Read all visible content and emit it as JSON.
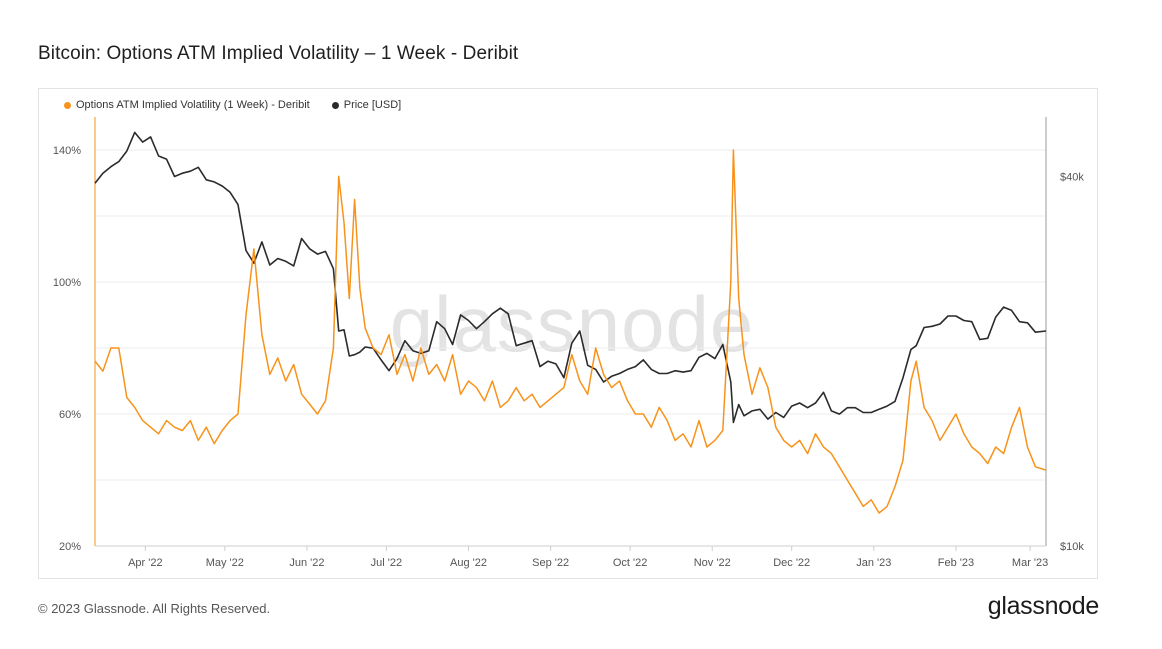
{
  "header": {
    "title": "Bitcoin: Options ATM Implied Volatility – 1 Week - Deribit"
  },
  "footer": {
    "copyright": "© 2023 Glassnode. All Rights Reserved.",
    "brand": "glassnode"
  },
  "watermark": "glassnode",
  "colors": {
    "volatility": "#F7931A",
    "price": "#2B2B2B",
    "grid": "#ececec",
    "axis": "#cfcfcf"
  },
  "chart_data": {
    "type": "line",
    "title": "Bitcoin: Options ATM Implied Volatility – 1 Week - Deribit",
    "legend_position": "top-left",
    "grid": true,
    "x_range": [
      "2022-03-13",
      "2023-03-07"
    ],
    "x_ticks": [
      {
        "label": "Apr '22",
        "date": "2022-04-01"
      },
      {
        "label": "May '22",
        "date": "2022-05-01"
      },
      {
        "label": "Jun '22",
        "date": "2022-06-01"
      },
      {
        "label": "Jul '22",
        "date": "2022-07-01"
      },
      {
        "label": "Aug '22",
        "date": "2022-08-01"
      },
      {
        "label": "Sep '22",
        "date": "2022-09-01"
      },
      {
        "label": "Oct '22",
        "date": "2022-10-01"
      },
      {
        "label": "Nov '22",
        "date": "2022-11-01"
      },
      {
        "label": "Dec '22",
        "date": "2022-12-01"
      },
      {
        "label": "Jan '23",
        "date": "2023-01-01"
      },
      {
        "label": "Feb '23",
        "date": "2023-02-01"
      },
      {
        "label": "Mar '23",
        "date": "2023-03-01"
      }
    ],
    "y_left": {
      "range": [
        20,
        150
      ],
      "ticks": [
        {
          "label": "20%",
          "value": 20
        },
        {
          "label": "60%",
          "value": 60
        },
        {
          "label": "100%",
          "value": 100
        },
        {
          "label": "140%",
          "value": 140
        }
      ]
    },
    "y_right": {
      "scale": "log",
      "range": [
        10000,
        50000
      ],
      "ticks": [
        {
          "label": "$10k",
          "value": 10000
        },
        {
          "label": "$40k",
          "value": 40000
        }
      ]
    },
    "series": [
      {
        "name": "Options ATM Implied Volatility (1 Week) - Deribit",
        "axis": "left",
        "unit": "%",
        "points": [
          [
            "2022-03-13",
            76
          ],
          [
            "2022-03-16",
            73
          ],
          [
            "2022-03-19",
            80
          ],
          [
            "2022-03-22",
            80
          ],
          [
            "2022-03-25",
            65
          ],
          [
            "2022-03-28",
            62
          ],
          [
            "2022-03-31",
            58
          ],
          [
            "2022-04-03",
            56
          ],
          [
            "2022-04-06",
            54
          ],
          [
            "2022-04-09",
            58
          ],
          [
            "2022-04-12",
            56
          ],
          [
            "2022-04-15",
            55
          ],
          [
            "2022-04-18",
            58
          ],
          [
            "2022-04-21",
            52
          ],
          [
            "2022-04-24",
            56
          ],
          [
            "2022-04-27",
            51
          ],
          [
            "2022-04-30",
            55
          ],
          [
            "2022-05-03",
            58
          ],
          [
            "2022-05-06",
            60
          ],
          [
            "2022-05-09",
            90
          ],
          [
            "2022-05-12",
            110
          ],
          [
            "2022-05-15",
            84
          ],
          [
            "2022-05-18",
            72
          ],
          [
            "2022-05-21",
            77
          ],
          [
            "2022-05-24",
            70
          ],
          [
            "2022-05-27",
            75
          ],
          [
            "2022-05-30",
            66
          ],
          [
            "2022-06-02",
            63
          ],
          [
            "2022-06-05",
            60
          ],
          [
            "2022-06-08",
            64
          ],
          [
            "2022-06-11",
            80
          ],
          [
            "2022-06-13",
            132
          ],
          [
            "2022-06-15",
            118
          ],
          [
            "2022-06-17",
            95
          ],
          [
            "2022-06-19",
            125
          ],
          [
            "2022-06-21",
            98
          ],
          [
            "2022-06-23",
            86
          ],
          [
            "2022-06-26",
            80
          ],
          [
            "2022-06-29",
            78
          ],
          [
            "2022-07-02",
            84
          ],
          [
            "2022-07-05",
            72
          ],
          [
            "2022-07-08",
            78
          ],
          [
            "2022-07-11",
            70
          ],
          [
            "2022-07-14",
            80
          ],
          [
            "2022-07-17",
            72
          ],
          [
            "2022-07-20",
            75
          ],
          [
            "2022-07-23",
            70
          ],
          [
            "2022-07-26",
            78
          ],
          [
            "2022-07-29",
            66
          ],
          [
            "2022-08-01",
            70
          ],
          [
            "2022-08-04",
            68
          ],
          [
            "2022-08-07",
            64
          ],
          [
            "2022-08-10",
            70
          ],
          [
            "2022-08-13",
            62
          ],
          [
            "2022-08-16",
            64
          ],
          [
            "2022-08-19",
            68
          ],
          [
            "2022-08-22",
            64
          ],
          [
            "2022-08-25",
            66
          ],
          [
            "2022-08-28",
            62
          ],
          [
            "2022-08-31",
            64
          ],
          [
            "2022-09-03",
            66
          ],
          [
            "2022-09-06",
            68
          ],
          [
            "2022-09-09",
            78
          ],
          [
            "2022-09-12",
            70
          ],
          [
            "2022-09-15",
            66
          ],
          [
            "2022-09-18",
            80
          ],
          [
            "2022-09-21",
            72
          ],
          [
            "2022-09-24",
            68
          ],
          [
            "2022-09-27",
            70
          ],
          [
            "2022-09-30",
            64
          ],
          [
            "2022-10-03",
            60
          ],
          [
            "2022-10-06",
            60
          ],
          [
            "2022-10-09",
            56
          ],
          [
            "2022-10-12",
            62
          ],
          [
            "2022-10-15",
            58
          ],
          [
            "2022-10-18",
            52
          ],
          [
            "2022-10-21",
            54
          ],
          [
            "2022-10-24",
            50
          ],
          [
            "2022-10-27",
            58
          ],
          [
            "2022-10-30",
            50
          ],
          [
            "2022-11-02",
            52
          ],
          [
            "2022-11-05",
            55
          ],
          [
            "2022-11-08",
            100
          ],
          [
            "2022-11-09",
            140
          ],
          [
            "2022-11-11",
            95
          ],
          [
            "2022-11-13",
            78
          ],
          [
            "2022-11-16",
            66
          ],
          [
            "2022-11-19",
            74
          ],
          [
            "2022-11-22",
            68
          ],
          [
            "2022-11-25",
            56
          ],
          [
            "2022-11-28",
            52
          ],
          [
            "2022-12-01",
            50
          ],
          [
            "2022-12-04",
            52
          ],
          [
            "2022-12-07",
            48
          ],
          [
            "2022-12-10",
            54
          ],
          [
            "2022-12-13",
            50
          ],
          [
            "2022-12-16",
            48
          ],
          [
            "2022-12-19",
            44
          ],
          [
            "2022-12-22",
            40
          ],
          [
            "2022-12-25",
            36
          ],
          [
            "2022-12-28",
            32
          ],
          [
            "2022-12-31",
            34
          ],
          [
            "2023-01-03",
            30
          ],
          [
            "2023-01-06",
            32
          ],
          [
            "2023-01-09",
            38
          ],
          [
            "2023-01-12",
            46
          ],
          [
            "2023-01-15",
            70
          ],
          [
            "2023-01-17",
            76
          ],
          [
            "2023-01-20",
            62
          ],
          [
            "2023-01-23",
            58
          ],
          [
            "2023-01-26",
            52
          ],
          [
            "2023-01-29",
            56
          ],
          [
            "2023-02-01",
            60
          ],
          [
            "2023-02-04",
            54
          ],
          [
            "2023-02-07",
            50
          ],
          [
            "2023-02-10",
            48
          ],
          [
            "2023-02-13",
            45
          ],
          [
            "2023-02-16",
            50
          ],
          [
            "2023-02-19",
            48
          ],
          [
            "2023-02-22",
            56
          ],
          [
            "2023-02-25",
            62
          ],
          [
            "2023-02-28",
            50
          ],
          [
            "2023-03-03",
            44
          ],
          [
            "2023-03-07",
            43
          ]
        ]
      },
      {
        "name": "Price [USD]",
        "axis": "right",
        "unit": "USD",
        "points": [
          [
            "2022-03-13",
            39000
          ],
          [
            "2022-03-16",
            40500
          ],
          [
            "2022-03-19",
            41500
          ],
          [
            "2022-03-22",
            42300
          ],
          [
            "2022-03-25",
            44000
          ],
          [
            "2022-03-28",
            47200
          ],
          [
            "2022-03-31",
            45500
          ],
          [
            "2022-04-03",
            46400
          ],
          [
            "2022-04-06",
            43200
          ],
          [
            "2022-04-09",
            42700
          ],
          [
            "2022-04-12",
            40000
          ],
          [
            "2022-04-15",
            40500
          ],
          [
            "2022-04-18",
            40800
          ],
          [
            "2022-04-21",
            41400
          ],
          [
            "2022-04-24",
            39500
          ],
          [
            "2022-04-27",
            39200
          ],
          [
            "2022-04-30",
            38600
          ],
          [
            "2022-05-03",
            37700
          ],
          [
            "2022-05-06",
            36000
          ],
          [
            "2022-05-09",
            30300
          ],
          [
            "2022-05-12",
            28900
          ],
          [
            "2022-05-15",
            31300
          ],
          [
            "2022-05-18",
            28700
          ],
          [
            "2022-05-21",
            29400
          ],
          [
            "2022-05-24",
            29100
          ],
          [
            "2022-05-27",
            28600
          ],
          [
            "2022-05-30",
            31700
          ],
          [
            "2022-06-02",
            30500
          ],
          [
            "2022-06-05",
            29900
          ],
          [
            "2022-06-08",
            30200
          ],
          [
            "2022-06-11",
            28300
          ],
          [
            "2022-06-13",
            22400
          ],
          [
            "2022-06-15",
            22500
          ],
          [
            "2022-06-17",
            20400
          ],
          [
            "2022-06-19",
            20500
          ],
          [
            "2022-06-21",
            20700
          ],
          [
            "2022-06-23",
            21100
          ],
          [
            "2022-06-26",
            21000
          ],
          [
            "2022-06-29",
            20100
          ],
          [
            "2022-07-02",
            19300
          ],
          [
            "2022-07-05",
            20200
          ],
          [
            "2022-07-08",
            21600
          ],
          [
            "2022-07-11",
            20800
          ],
          [
            "2022-07-14",
            20600
          ],
          [
            "2022-07-17",
            20800
          ],
          [
            "2022-07-20",
            23200
          ],
          [
            "2022-07-23",
            22600
          ],
          [
            "2022-07-26",
            21300
          ],
          [
            "2022-07-29",
            23800
          ],
          [
            "2022-08-01",
            23300
          ],
          [
            "2022-08-04",
            22600
          ],
          [
            "2022-08-07",
            23200
          ],
          [
            "2022-08-10",
            23900
          ],
          [
            "2022-08-13",
            24400
          ],
          [
            "2022-08-16",
            23900
          ],
          [
            "2022-08-19",
            21200
          ],
          [
            "2022-08-22",
            21400
          ],
          [
            "2022-08-25",
            21600
          ],
          [
            "2022-08-28",
            19600
          ],
          [
            "2022-08-31",
            20000
          ],
          [
            "2022-09-03",
            19800
          ],
          [
            "2022-09-06",
            18800
          ],
          [
            "2022-09-09",
            21400
          ],
          [
            "2022-09-12",
            22400
          ],
          [
            "2022-09-15",
            19700
          ],
          [
            "2022-09-18",
            19400
          ],
          [
            "2022-09-21",
            18500
          ],
          [
            "2022-09-24",
            18900
          ],
          [
            "2022-09-27",
            19100
          ],
          [
            "2022-09-30",
            19400
          ],
          [
            "2022-10-03",
            19600
          ],
          [
            "2022-10-06",
            20100
          ],
          [
            "2022-10-09",
            19400
          ],
          [
            "2022-10-12",
            19100
          ],
          [
            "2022-10-15",
            19100
          ],
          [
            "2022-10-18",
            19300
          ],
          [
            "2022-10-21",
            19200
          ],
          [
            "2022-10-24",
            19300
          ],
          [
            "2022-10-27",
            20300
          ],
          [
            "2022-10-30",
            20600
          ],
          [
            "2022-11-02",
            20200
          ],
          [
            "2022-11-05",
            21300
          ],
          [
            "2022-11-08",
            18500
          ],
          [
            "2022-11-09",
            15900
          ],
          [
            "2022-11-11",
            17000
          ],
          [
            "2022-11-13",
            16300
          ],
          [
            "2022-11-16",
            16600
          ],
          [
            "2022-11-19",
            16700
          ],
          [
            "2022-11-22",
            16100
          ],
          [
            "2022-11-25",
            16500
          ],
          [
            "2022-11-28",
            16200
          ],
          [
            "2022-12-01",
            16900
          ],
          [
            "2022-12-04",
            17100
          ],
          [
            "2022-12-07",
            16800
          ],
          [
            "2022-12-10",
            17100
          ],
          [
            "2022-12-13",
            17800
          ],
          [
            "2022-12-16",
            16600
          ],
          [
            "2022-12-19",
            16400
          ],
          [
            "2022-12-22",
            16800
          ],
          [
            "2022-12-25",
            16800
          ],
          [
            "2022-12-28",
            16500
          ],
          [
            "2022-12-31",
            16500
          ],
          [
            "2023-01-03",
            16700
          ],
          [
            "2023-01-06",
            16900
          ],
          [
            "2023-01-09",
            17200
          ],
          [
            "2023-01-12",
            18800
          ],
          [
            "2023-01-15",
            20900
          ],
          [
            "2023-01-17",
            21200
          ],
          [
            "2023-01-20",
            22700
          ],
          [
            "2023-01-23",
            22800
          ],
          [
            "2023-01-26",
            23000
          ],
          [
            "2023-01-29",
            23700
          ],
          [
            "2023-02-01",
            23700
          ],
          [
            "2023-02-04",
            23300
          ],
          [
            "2023-02-07",
            23200
          ],
          [
            "2023-02-10",
            21700
          ],
          [
            "2023-02-13",
            21800
          ],
          [
            "2023-02-16",
            23600
          ],
          [
            "2023-02-19",
            24500
          ],
          [
            "2023-02-22",
            24200
          ],
          [
            "2023-02-25",
            23200
          ],
          [
            "2023-02-28",
            23100
          ],
          [
            "2023-03-03",
            22300
          ],
          [
            "2023-03-07",
            22400
          ]
        ]
      }
    ]
  }
}
